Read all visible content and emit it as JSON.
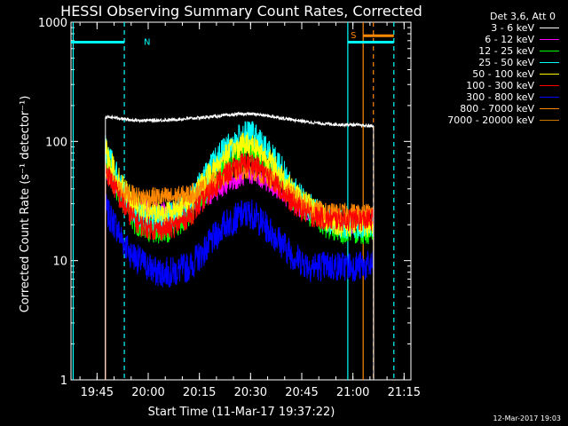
{
  "chart_data": {
    "type": "line",
    "title": "HESSI Observing Summary Count Rates, Corrected",
    "xlabel": "Start Time (11-Mar-17 19:37:22)",
    "ylabel": "Corrected Count Rate (s⁻¹ detector⁻¹)",
    "yscale": "log",
    "ylim": [
      1,
      1000
    ],
    "xlim": [
      "19:37:22",
      "21:17:00"
    ],
    "x_ticks": [
      "19:45",
      "20:00",
      "20:15",
      "20:30",
      "20:45",
      "21:00",
      "21:15"
    ],
    "y_ticks": [
      "1",
      "10",
      "100",
      "1000"
    ],
    "x_minutes_from_start": [
      10.1,
      11,
      13,
      15,
      17,
      20,
      25,
      30,
      35,
      40,
      45,
      50,
      53,
      55,
      60,
      65,
      70,
      75,
      80,
      83,
      85,
      88,
      88.7
    ],
    "series": [
      {
        "name": "3 - 6 keV",
        "color": "#ffffff",
        "values": [
          160,
          160,
          158,
          155,
          152,
          150,
          150,
          152,
          156,
          160,
          165,
          170,
          170,
          168,
          160,
          152,
          145,
          140,
          138,
          138,
          136,
          135,
          135
        ]
      },
      {
        "name": "6 - 12 keV",
        "color": "#ff00ff",
        "values": [
          55,
          50,
          42,
          36,
          32,
          28,
          26,
          26,
          28,
          34,
          42,
          50,
          52,
          50,
          40,
          30,
          25,
          22,
          20,
          20,
          20,
          20,
          20
        ]
      },
      {
        "name": "12 - 25 keV",
        "color": "#00ff00",
        "values": [
          80,
          65,
          45,
          32,
          25,
          20,
          18,
          19,
          25,
          40,
          60,
          80,
          85,
          78,
          55,
          35,
          25,
          20,
          18,
          18,
          18,
          18,
          18
        ]
      },
      {
        "name": "25 - 50 keV",
        "color": "#00ffff",
        "values": [
          90,
          75,
          55,
          38,
          30,
          24,
          22,
          24,
          32,
          55,
          85,
          110,
          115,
          100,
          70,
          40,
          28,
          22,
          20,
          20,
          20,
          20,
          20
        ]
      },
      {
        "name": "50 - 100 keV",
        "color": "#ffff00",
        "values": [
          85,
          72,
          55,
          42,
          35,
          28,
          25,
          26,
          32,
          50,
          75,
          95,
          95,
          85,
          60,
          38,
          28,
          22,
          20,
          20,
          20,
          20,
          20
        ]
      },
      {
        "name": "100 - 300 keV",
        "color": "#ff0000",
        "values": [
          60,
          52,
          40,
          30,
          25,
          20,
          18,
          19,
          24,
          35,
          52,
          65,
          66,
          60,
          45,
          30,
          24,
          22,
          22,
          22,
          22,
          22,
          22
        ]
      },
      {
        "name": "300 - 800 keV",
        "color": "#0000ff",
        "values": [
          28,
          24,
          20,
          15,
          12,
          10,
          8,
          8,
          9,
          13,
          20,
          24,
          25,
          22,
          16,
          11,
          9,
          9,
          9,
          9,
          9,
          9,
          9
        ]
      },
      {
        "name": "800 - 7000 keV",
        "color": "#ff8800",
        "values": [
          55,
          50,
          42,
          38,
          36,
          34,
          34,
          34,
          36,
          42,
          52,
          58,
          58,
          55,
          45,
          35,
          28,
          25,
          25,
          25,
          25,
          25,
          25
        ]
      },
      {
        "name": "7000 - 20000 keV",
        "color": "#cc7700",
        "values": []
      }
    ],
    "legend_header": "Det 3,6, Att 0",
    "flags": [
      {
        "label": "N",
        "color": "#00ffff",
        "bar_start": "19:37:22",
        "bar_end": "19:53:00",
        "level": 680
      },
      {
        "label": "S",
        "color": "#ff8800",
        "bar_start": "21:03:00",
        "bar_end": "21:12:00",
        "level": 770
      },
      {
        "label": "",
        "color": "#00ffff",
        "bar_start": "20:58:30",
        "bar_end": "21:12:00",
        "level": 680
      }
    ],
    "vlines": [
      {
        "time": "19:38:00",
        "color": "#00ffff",
        "style": "solid"
      },
      {
        "time": "19:53:00",
        "color": "#00ffff",
        "style": "dashed"
      },
      {
        "time": "20:58:30",
        "color": "#00ffff",
        "style": "solid"
      },
      {
        "time": "21:03:00",
        "color": "#ff8800",
        "style": "solid"
      },
      {
        "time": "21:06:00",
        "color": "#ff8800",
        "style": "dashed"
      },
      {
        "time": "21:12:00",
        "color": "#00ffff",
        "style": "dashed"
      }
    ]
  },
  "legend": {
    "header": "Det 3,6, Att 0",
    "items": [
      {
        "label": "3 - 6 keV",
        "color": "#ffffff"
      },
      {
        "label": "6 - 12 keV",
        "color": "#ff00ff"
      },
      {
        "label": "12 - 25 keV",
        "color": "#00ff00"
      },
      {
        "label": "25 - 50 keV",
        "color": "#00ffff"
      },
      {
        "label": "50 - 100 keV",
        "color": "#ffff00"
      },
      {
        "label": "100 - 300 keV",
        "color": "#ff0000"
      },
      {
        "label": "300 - 800 keV",
        "color": "#0000ff"
      },
      {
        "label": "800 - 7000 keV",
        "color": "#ff8800"
      },
      {
        "label": "7000 - 20000 keV",
        "color": "#cc7700"
      }
    ]
  },
  "footer": {
    "timestamp": "12-Mar-2017 19:03"
  }
}
